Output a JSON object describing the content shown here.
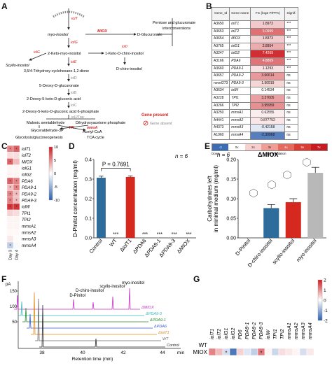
{
  "panels": {
    "A": "A",
    "B": "B",
    "C": "C",
    "D": "D",
    "E": "E",
    "F": "F",
    "G": "G"
  },
  "pathway": {
    "genes": {
      "iolT": "iolT",
      "iolG": "iolG",
      "miox": "MIOX",
      "iolE": "iolE",
      "iolD": "iolD",
      "iolB": "iolB",
      "iolC": "iolC",
      "iolJ": "iolJ/Tpa",
      "tpi": "TPI",
      "mmsA": "mmsA",
      "iolI": "iolI",
      "iol0": "iol0",
      "iolG2": "iolG"
    },
    "compounds": {
      "myo": "myo-inositol",
      "glucuronate": "D-Glucuronate",
      "pentose": "Pentose and glucuronate",
      "interconv": "interconversions",
      "scyllo": "Scyllo-inositol",
      "inosose": "2-Keto-myo-inositol",
      "keto_chiro": "1-Keto-D-chiro-inositol",
      "trihydroxy": "3,5/4-Trihydroxy-cyclohexane-1,2-dione",
      "dchiro": "D-chiro-inositol",
      "deoxy_glucuronate": "5-Deoxy-D-glucuronate",
      "deoxy_keto": "2-Deoxy-5-keto-D-gluconic acid",
      "deoxy_keto_p": "2-Deoxy-5-keto-D-gluconic acid 6-phosphate",
      "malonic": "Malonic semialdehyde",
      "dhap": "Dihydroxyacetone phosphate",
      "g3p": "Glyceraldehyde-3P",
      "acetyl": "Acetyl-CoA",
      "glyco": "Glycolysis/gluconeogenesis",
      "tca": "TCA cycle"
    },
    "legend": {
      "present": "Gene present",
      "absent": "Gene absent"
    },
    "accent_red": "#d32020"
  },
  "table_b": {
    "headers": [
      "Gene_Id",
      "Gene name",
      "FC (log2 P/PFK)",
      "Signif."
    ],
    "rows": [
      [
        "A3650",
        "iolT1",
        "1.8972",
        "***"
      ],
      [
        "A3653",
        "iolT2",
        "5.0999",
        "***"
      ],
      [
        "A3654",
        "MIOX",
        "1.8373",
        "***"
      ],
      [
        "A3765",
        "iolG1",
        "2.8954",
        "***"
      ],
      [
        "A3247",
        "iolG2",
        "7.4269",
        "***"
      ],
      [
        "A3166",
        "PDA6",
        "4.8869",
        "***"
      ],
      [
        "A3660",
        "PDA9-1",
        "1.1293",
        "***"
      ],
      [
        "A3657",
        "PDA9-2",
        "3.60614",
        "ns"
      ],
      [
        "novel273",
        "PDA9-3",
        "1.50919",
        "ns"
      ],
      [
        "A3634",
        "iolW",
        "0.14534",
        "ns"
      ],
      [
        "A3228",
        "TPI1",
        "3.37605",
        "ns"
      ],
      [
        "A3266",
        "TPI2",
        "3.95959",
        "ns"
      ],
      [
        "A3250",
        "mmsA1",
        "0.62555",
        "ns"
      ],
      [
        "A4441",
        "mmsA2",
        "0.877752",
        "ns"
      ],
      [
        "A4373",
        "mmsA3",
        "-0.42158",
        "ns"
      ],
      [
        "A1960",
        "mmsA4",
        "-2.39968",
        "ns"
      ]
    ],
    "fc_values": [
      1.9,
      5.1,
      1.84,
      2.9,
      7.43,
      4.89,
      1.13,
      3.61,
      1.51,
      0.15,
      3.38,
      3.96,
      0.63,
      0.88,
      -0.42,
      -2.4
    ],
    "scale_labels": [
      "-2",
      "0x",
      "2x",
      "3x",
      "4x",
      "5x",
      "7x"
    ],
    "scale_text": {
      "down": "Down",
      "up": "Up-regulation"
    }
  },
  "heatmap_c": {
    "genes": [
      "iolT1",
      "iolT2",
      "MIOX",
      "iolG1",
      "iolG2",
      "PDA6",
      "PDA9-1",
      "PDA9-2",
      "PDA9-3",
      "iolW",
      "TPI1",
      "TPI2",
      "mmsA1",
      "mmsA2",
      "mmsA3",
      "mmsA4"
    ],
    "columns": [
      "Day 3",
      "Day 4"
    ],
    "values": [
      [
        5.5,
        7.0
      ],
      [
        1.5,
        1.5
      ],
      [
        7.0,
        3.0
      ],
      [
        0.5,
        0.5
      ],
      [
        0.5,
        0.5
      ],
      [
        7.0,
        5.5
      ],
      [
        3.0,
        5.5
      ],
      [
        5.5,
        3.0
      ],
      [
        5.5,
        3.0
      ],
      [
        9.0,
        9.0
      ],
      [
        2.0,
        1.5
      ],
      [
        0.5,
        0.5
      ],
      [
        0.5,
        0.5
      ],
      [
        0.3,
        0.3
      ],
      [
        1.0,
        0.2
      ],
      [
        -3.0,
        -0.4
      ]
    ],
    "stars": [
      [
        "*",
        "*"
      ],
      [
        "",
        ""
      ],
      [
        "*",
        ""
      ],
      [
        "",
        ""
      ],
      [
        "",
        ""
      ],
      [
        "*",
        "*"
      ],
      [
        "*",
        "*"
      ],
      [
        "*",
        "*"
      ],
      [
        "*",
        "*"
      ],
      [
        "*",
        "*"
      ],
      [
        "",
        ""
      ],
      [
        "",
        ""
      ],
      [
        "",
        ""
      ],
      [
        "",
        ""
      ],
      [
        "",
        ""
      ],
      [
        "*",
        ""
      ]
    ],
    "scale": {
      "ticks": [
        "10",
        "5",
        "0",
        "-5",
        "-10"
      ],
      "min": -10,
      "max": 10
    }
  },
  "chart_data": [
    {
      "type": "bar",
      "panel": "D",
      "categories": [
        "Control",
        "WT",
        "ΔiolT1",
        "ΔPDA6",
        "ΔPDA9-1",
        "ΔPDA9-3",
        "ΔMIOX"
      ],
      "values": [
        0.307,
        0,
        0.311,
        0,
        0,
        0,
        0
      ],
      "errors": [
        0.008,
        0,
        0.005,
        0,
        0,
        0,
        0
      ],
      "bar_colors": [
        "#2e6c9c",
        "#2e6c9c",
        "#d5291f",
        "#d5291f",
        "#d5291f",
        "#d5291f",
        "#d5291f"
      ],
      "labels_below": [
        "",
        "***",
        "",
        "***",
        "***",
        "***",
        "***"
      ],
      "ylabel": "D-Pinitol concentration (mg/ml)",
      "ylim": [
        0,
        0.4
      ],
      "yticks": [
        "0.0",
        "0.1",
        "0.2",
        "0.3",
        "0.4"
      ],
      "annotation": "P = 0.7691",
      "n": "n = 6"
    },
    {
      "type": "bar",
      "panel": "E",
      "categories": [
        "D-Pinitol",
        "D-chiro-inositol",
        "scyllo-inositol",
        "myo-inositol"
      ],
      "values": [
        0,
        0.076,
        0.091,
        0.166
      ],
      "errors": [
        0,
        0.009,
        0.009,
        0.014
      ],
      "bar_colors": [
        "#2e6c9c",
        "#2e6c9c",
        "#d5291f",
        "#b8b8b8"
      ],
      "title": "ΔMIOX",
      "ylabel": "Carbohydrates left in minimal medium (mg/ml)",
      "ylim": [
        0,
        0.2
      ],
      "yticks": [
        "0.00",
        "0.05",
        "0.10",
        "0.15",
        "0.20"
      ],
      "n": "n = 6"
    },
    {
      "type": "line",
      "panel": "F",
      "xlabel": "Retention time (min)",
      "x_ticks": [
        "38",
        "40",
        "42",
        "44",
        "min"
      ],
      "y_label": "pA",
      "y_ticks": [
        "150",
        "100",
        "50"
      ],
      "peak_labels": [
        "D-Pinitol",
        "D-chiro-inositol",
        "scyllo-inositol",
        "myo-inositol"
      ],
      "series": [
        {
          "name": "ΔMIOX",
          "color": "#c531c5"
        },
        {
          "name": "ΔPDA9-3",
          "color": "#3bb8b8"
        },
        {
          "name": "ΔPDA9-1",
          "color": "#2a8a2a"
        },
        {
          "name": "ΔPDA6",
          "color": "#3a57c9"
        },
        {
          "name": "ΔiolT1",
          "color": "#e28a1a"
        },
        {
          "name": "WT",
          "color": "#666666"
        },
        {
          "name": "Control",
          "color": "#2a2a2a"
        }
      ]
    },
    {
      "type": "heatmap",
      "panel": "G",
      "columns": [
        "iolT1",
        "iolT2",
        "iolG1",
        "iolG2",
        "PD6",
        "PDA9-1",
        "PDA9-2",
        "PDA9-3",
        "iolW",
        "TPI1",
        "TPI2",
        "mmsA1",
        "mmsA2",
        "mmsA3",
        "mmsA4"
      ],
      "rows": [
        "WT",
        "ΔMIOX"
      ],
      "values": [
        [
          0,
          0,
          0,
          0,
          0,
          0,
          0,
          0,
          0,
          0,
          0,
          0,
          0,
          0,
          0
        ],
        [
          1.1,
          0.6,
          -0.4,
          -1.7,
          0.4,
          -0.3,
          -0.6,
          1.2,
          0.1,
          -0.5,
          0.3,
          0.2,
          0.1,
          -0.4,
          0.2
        ]
      ],
      "stars": [
        [
          "",
          "",
          "",
          "",
          "",
          "",
          "",
          "",
          "",
          "",
          "",
          "",
          "",
          "",
          ""
        ],
        [
          "",
          "",
          "*",
          "",
          "",
          "",
          "",
          "*",
          "",
          "",
          "",
          "",
          "",
          "",
          ""
        ]
      ],
      "scale": {
        "ticks": [
          "2",
          "1",
          "0",
          "-1",
          "-2"
        ],
        "min": -2,
        "max": 2
      }
    }
  ]
}
